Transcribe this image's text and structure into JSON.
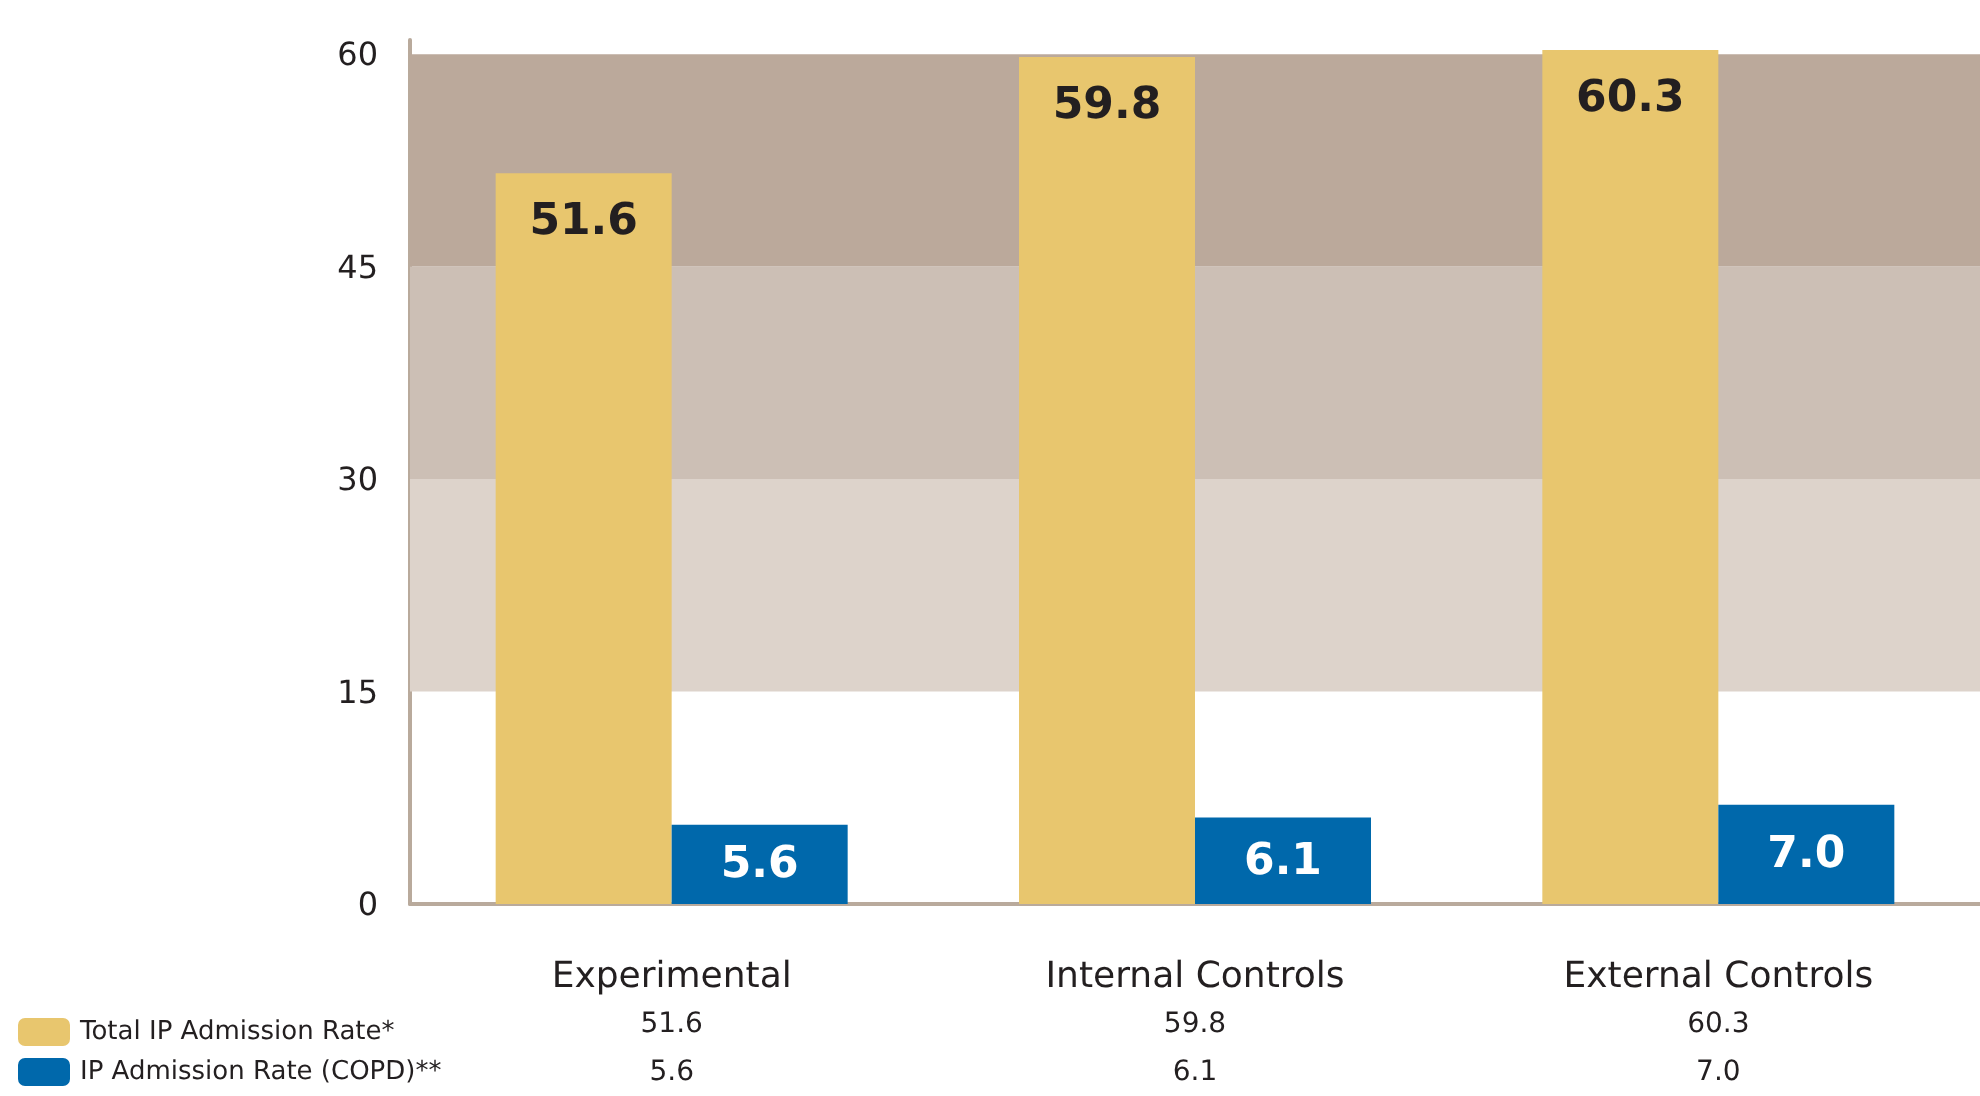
{
  "chart_data": {
    "type": "bar",
    "categories": [
      "Experimental",
      "Internal Controls",
      "External Controls"
    ],
    "series": [
      {
        "name": "Total IP Admission Rate*",
        "color": "#e8c66e",
        "values": [
          51.6,
          59.8,
          60.3
        ],
        "value_labels": [
          "51.6",
          "59.8",
          "60.3"
        ]
      },
      {
        "name": "IP Admission Rate (COPD)**",
        "color": "#0068ab",
        "values": [
          5.6,
          6.1,
          7.0
        ],
        "value_labels": [
          "5.6",
          "6.1",
          "7.0"
        ]
      }
    ],
    "ylim": [
      0,
      61
    ],
    "yticks": [
      0,
      15,
      30,
      45,
      60
    ],
    "grid": false,
    "legend": "bottom left",
    "bands": [
      {
        "axis": "y",
        "from": 15,
        "to": 30,
        "color": "#ddd3cb"
      },
      {
        "axis": "y",
        "from": 30,
        "to": 45,
        "color": "#ccbfb5"
      },
      {
        "axis": "y",
        "from": 45,
        "to": 60,
        "color": "#bba99b"
      }
    ]
  }
}
